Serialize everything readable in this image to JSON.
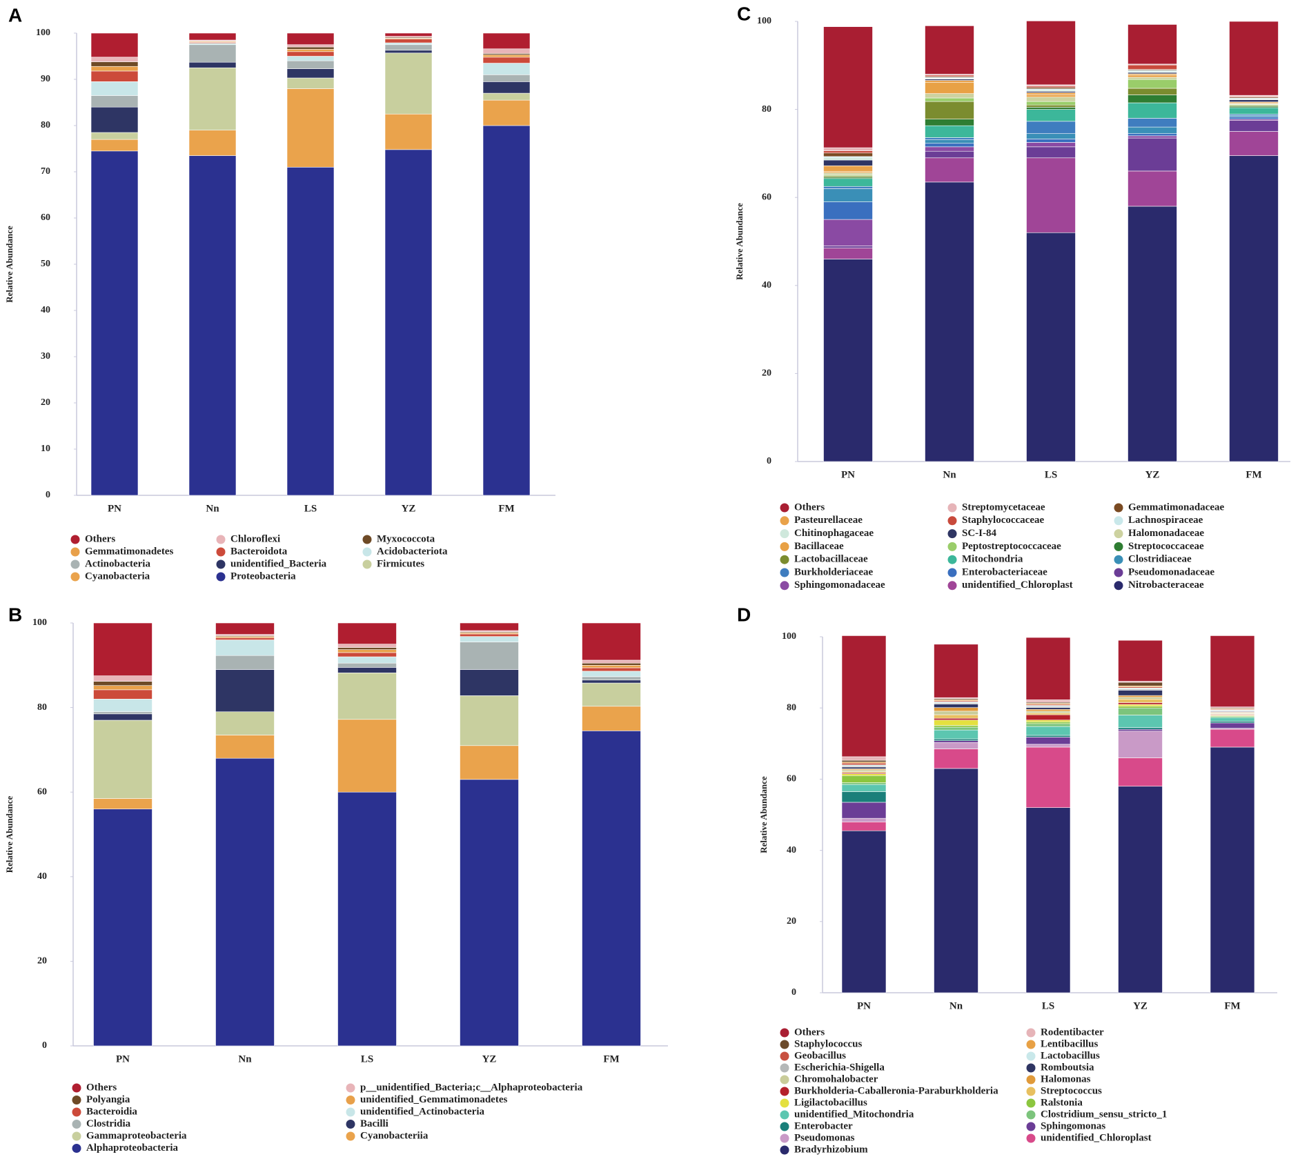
{
  "chart_data": [
    {
      "type": "bar",
      "stacked": true,
      "panel": "A",
      "ylabel": "Relative Abundance",
      "categories": [
        "PN",
        "Nn",
        "LS",
        "YZ",
        "FM"
      ],
      "ylim": [
        0,
        100
      ],
      "yticks": [
        0,
        10,
        20,
        30,
        40,
        50,
        60,
        70,
        80,
        90,
        100
      ],
      "series": [
        {
          "name": "Others",
          "color": "#b01e30",
          "values": [
            5.2,
            1.5,
            2.5,
            0.7,
            3.4
          ]
        },
        {
          "name": "Gemmatimonadetes",
          "color": "#e8a04a",
          "values": [
            1,
            0.2,
            0.5,
            0.2,
            0.5
          ]
        },
        {
          "name": "Actinobacteria",
          "color": "#a9b3b3",
          "values": [
            2.5,
            3.8,
            1.7,
            1.2,
            1.5
          ]
        },
        {
          "name": "Cyanobacteria",
          "color": "#eaa34c",
          "values": [
            2.5,
            5.5,
            17,
            7.7,
            5.5
          ]
        },
        {
          "name": "Chloroflexi",
          "color": "#e8b4b8",
          "values": [
            1,
            0.2,
            0.5,
            0.2,
            1
          ]
        },
        {
          "name": "Bacteroidota",
          "color": "#cc4a3a",
          "values": [
            2.3,
            0.2,
            1,
            0.8,
            1.3
          ]
        },
        {
          "name": "unidentified_Bacteria",
          "color": "#2e3564",
          "values": [
            5.5,
            1.2,
            2,
            0.6,
            2.5
          ]
        },
        {
          "name": "Proteobacteria",
          "color": "#2b3190",
          "values": [
            74.5,
            73.5,
            71,
            74.8,
            80
          ]
        },
        {
          "name": "Myxococcota",
          "color": "#6e4a26",
          "values": [
            1,
            0.1,
            0.5,
            0.2,
            0.3
          ]
        },
        {
          "name": "Acidobacteriota",
          "color": "#c8e6e8",
          "values": [
            3,
            0.3,
            1,
            0.4,
            2.5
          ]
        },
        {
          "name": "Firmicutes",
          "color": "#c8cf9e",
          "values": [
            1.5,
            13.5,
            2.3,
            13.2,
            1.5
          ]
        }
      ]
    },
    {
      "type": "bar",
      "stacked": true,
      "panel": "B",
      "ylabel": "Relative Abundance",
      "categories": [
        "PN",
        "Nn",
        "LS",
        "YZ",
        "FM"
      ],
      "ylim": [
        0,
        100
      ],
      "yticks": [
        0,
        20,
        40,
        60,
        80,
        100
      ],
      "series": [
        {
          "name": "Others",
          "color": "#b01e30",
          "values": [
            12.5,
            2.7,
            5,
            1.8,
            8.8
          ]
        },
        {
          "name": "Polyangia",
          "color": "#6e4a26",
          "values": [
            1,
            0.2,
            0.5,
            0.2,
            0.5
          ]
        },
        {
          "name": "Bacteroidia",
          "color": "#cc4a3a",
          "values": [
            2.2,
            0.5,
            1,
            0.6,
            0.8
          ]
        },
        {
          "name": "Clostridia",
          "color": "#a9b3b3",
          "values": [
            0.5,
            3.3,
            1,
            6.5,
            0.8
          ]
        },
        {
          "name": "Gammaproteobacteria",
          "color": "#c8cf9e",
          "values": [
            18.5,
            5.5,
            11,
            11.8,
            5.5
          ]
        },
        {
          "name": "Alphaproteobacteria",
          "color": "#2b3190",
          "values": [
            56,
            68,
            60,
            63,
            74.5
          ]
        },
        {
          "name": "p__unidentified_Bacteria;c__Alphaproteobacteria",
          "color": "#e8b4b8",
          "values": [
            1.3,
            0.3,
            0.8,
            0.3,
            0.7
          ]
        },
        {
          "name": "unidentified_Gemmatimonadetes",
          "color": "#e8a04a",
          "values": [
            1,
            0.3,
            0.7,
            0.3,
            0.6
          ]
        },
        {
          "name": "unidentified_Actinobacteria",
          "color": "#c8e6e8",
          "values": [
            3,
            3.7,
            1.5,
            1.3,
            1.3
          ]
        },
        {
          "name": "Bacilli",
          "color": "#2e3564",
          "values": [
            1.5,
            10,
            1.3,
            6.2,
            0.7
          ]
        },
        {
          "name": "Cyanobacteriia",
          "color": "#eaa34c",
          "values": [
            2.5,
            5.5,
            17.2,
            8,
            5.8
          ]
        }
      ]
    },
    {
      "type": "bar",
      "stacked": true,
      "panel": "C",
      "ylabel": "Relative Abundance",
      "categories": [
        "PN",
        "Nn",
        "LS",
        "YZ",
        "FM"
      ],
      "ylim": [
        0,
        100
      ],
      "yticks": [
        0,
        20,
        40,
        60,
        80,
        100
      ],
      "series": [
        {
          "name": "Others",
          "color": "#a91e32",
          "values": [
            27.5,
            11,
            14.5,
            9,
            16.8
          ]
        },
        {
          "name": "Pasteurellaceae",
          "color": "#e9a24a",
          "values": [
            1.3,
            0.5,
            0.5,
            0.3,
            0.2
          ]
        },
        {
          "name": "Chitinophagaceae",
          "color": "#cfe8dc",
          "values": [
            0.5,
            0.2,
            0.3,
            0.2,
            0.2
          ]
        },
        {
          "name": "Bacillaceae",
          "color": "#e8a145",
          "values": [
            0.3,
            2.5,
            0.5,
            0.5,
            0.2
          ]
        },
        {
          "name": "Lactobacillaceae",
          "color": "#7b8c2f",
          "values": [
            0.3,
            4,
            0.5,
            1.5,
            0.2
          ]
        },
        {
          "name": "Burkholderiaceae",
          "color": "#3f7dbf",
          "values": [
            0.5,
            0.5,
            2.8,
            2,
            0.3
          ]
        },
        {
          "name": "Sphingomonadaceae",
          "color": "#8a4aa3",
          "values": [
            6,
            1,
            1,
            0.5,
            0.3
          ]
        },
        {
          "name": "Streptomycetaceae",
          "color": "#e6b4b8",
          "values": [
            0.7,
            0.2,
            0.3,
            0.2,
            0.2
          ]
        },
        {
          "name": "Staphylococcaceae",
          "color": "#c84a3c",
          "values": [
            0.5,
            0.3,
            0.3,
            1,
            0.2
          ]
        },
        {
          "name": "SC-I-84",
          "color": "#2f3563",
          "values": [
            1.3,
            0.3,
            0.3,
            0.3,
            0.5
          ]
        },
        {
          "name": "Peptostreptococcaceae",
          "color": "#9acd6a",
          "values": [
            0.2,
            0.8,
            0.8,
            2,
            0.2
          ]
        },
        {
          "name": "Mitochondria",
          "color": "#3cb79a",
          "values": [
            1.8,
            2.7,
            2.7,
            3.5,
            1.5
          ]
        },
        {
          "name": "Enterobacteriaceae",
          "color": "#3a6fbf",
          "values": [
            4,
            0.8,
            0.8,
            0.5,
            0.5
          ]
        },
        {
          "name": "unidentified_Chloroplast",
          "color": "#a04597",
          "values": [
            2.5,
            5.5,
            17,
            8,
            5.5
          ]
        },
        {
          "name": "Gemmatimonadaceae",
          "color": "#7a4a22",
          "values": [
            0.8,
            0.2,
            0.3,
            0.2,
            0.2
          ]
        },
        {
          "name": "Lachnospiraceae",
          "color": "#c9e8ea",
          "values": [
            0.3,
            0.2,
            0.3,
            0.3,
            0.2
          ]
        },
        {
          "name": "Halomonadaceae",
          "color": "#cdd2a0",
          "values": [
            0.5,
            1,
            1,
            0.5,
            0.2
          ]
        },
        {
          "name": "Streptococcaceae",
          "color": "#2e7d32",
          "values": [
            0.3,
            1.5,
            0.5,
            1.8,
            0.3
          ]
        },
        {
          "name": "Clostridiaceae",
          "color": "#3a8fb7",
          "values": [
            3,
            0.8,
            1.2,
            1.5,
            0.3
          ]
        },
        {
          "name": "Pseudomonadaceae",
          "color": "#6b3d96",
          "values": [
            0.5,
            1.5,
            2.5,
            7.5,
            2.5
          ]
        },
        {
          "name": "Nitrobacteraceae",
          "color": "#2a2a6c",
          "values": [
            46,
            63.5,
            52,
            58,
            69.5
          ]
        }
      ]
    },
    {
      "type": "bar",
      "stacked": true,
      "panel": "D",
      "ylabel": "Relative Abundance",
      "categories": [
        "PN",
        "Nn",
        "LS",
        "YZ",
        "FM"
      ],
      "ylim": [
        0,
        100
      ],
      "yticks": [
        0,
        20,
        40,
        60,
        80,
        100
      ],
      "series": [
        {
          "name": "Others",
          "color": "#a91e32",
          "values": [
            34,
            15,
            17.5,
            11.5,
            20
          ]
        },
        {
          "name": "Staphylococcus",
          "color": "#6b4a2a",
          "values": [
            0.5,
            0.3,
            0.3,
            1,
            0.2
          ]
        },
        {
          "name": "Geobacillus",
          "color": "#c85040",
          "values": [
            0.5,
            0.3,
            0.3,
            0.3,
            0.2
          ]
        },
        {
          "name": "Escherichia-Shigella",
          "color": "#b5b8b8",
          "values": [
            0.3,
            0.3,
            0.3,
            0.3,
            0.2
          ]
        },
        {
          "name": "Chromohalobacter",
          "color": "#c9cc9a",
          "values": [
            0.5,
            1,
            0.5,
            0.5,
            0.2
          ]
        },
        {
          "name": "Burkholderia-Caballeronia-Paraburkholderia",
          "color": "#b5202a",
          "values": [
            0.3,
            0.5,
            1.5,
            0.5,
            0.2
          ]
        },
        {
          "name": "Ligilactobacillus",
          "color": "#e4e040",
          "values": [
            0.5,
            1.5,
            0.5,
            0.5,
            0.2
          ]
        },
        {
          "name": "unidentified_Mitochondria",
          "color": "#5cc6b0",
          "values": [
            2,
            2.5,
            2.5,
            3.5,
            1
          ]
        },
        {
          "name": "Enterobacter",
          "color": "#1a7f7a",
          "values": [
            3,
            0.5,
            0.5,
            0.5,
            0.5
          ]
        },
        {
          "name": "Pseudomonas",
          "color": "#c99ac7",
          "values": [
            1,
            1.8,
            0.8,
            7.5,
            0.3
          ]
        },
        {
          "name": "Bradyrhizobium",
          "color": "#2a2a6c",
          "values": [
            45.5,
            63,
            52,
            58,
            69
          ]
        },
        {
          "name": "Rodentibacter",
          "color": "#e6b4b8",
          "values": [
            1,
            0.3,
            0.7,
            0.3,
            0.3
          ]
        },
        {
          "name": "Lentibacillus",
          "color": "#e8a145",
          "values": [
            0.3,
            0.3,
            0.3,
            0.3,
            0.2
          ]
        },
        {
          "name": "Lactobacillus",
          "color": "#c9e8ea",
          "values": [
            0.3,
            0.3,
            0.3,
            0.3,
            0.2
          ]
        },
        {
          "name": "Romboutsia",
          "color": "#2f3563",
          "values": [
            0.5,
            1,
            0.5,
            1.5,
            0.2
          ]
        },
        {
          "name": "Halomonas",
          "color": "#e09a3a",
          "values": [
            0.3,
            1,
            0.5,
            0.5,
            0.2
          ]
        },
        {
          "name": "Streptococcus",
          "color": "#e8c060",
          "values": [
            0.3,
            1,
            0.5,
            1,
            0.2
          ]
        },
        {
          "name": "Ralstonia",
          "color": "#8cc63f",
          "values": [
            2,
            0.5,
            0.5,
            0.5,
            0.2
          ]
        },
        {
          "name": "Clostridium_sensu_stricto_1",
          "color": "#7cc47c",
          "values": [
            0.5,
            0.8,
            0.8,
            2,
            0.3
          ]
        },
        {
          "name": "Sphingomonas",
          "color": "#6b3d96",
          "values": [
            4.5,
            0.5,
            2,
            0.5,
            1.5
          ]
        },
        {
          "name": "unidentified_Chloroplast",
          "color": "#d84a8a",
          "values": [
            2.5,
            5.5,
            17,
            8,
            5
          ]
        }
      ]
    }
  ]
}
